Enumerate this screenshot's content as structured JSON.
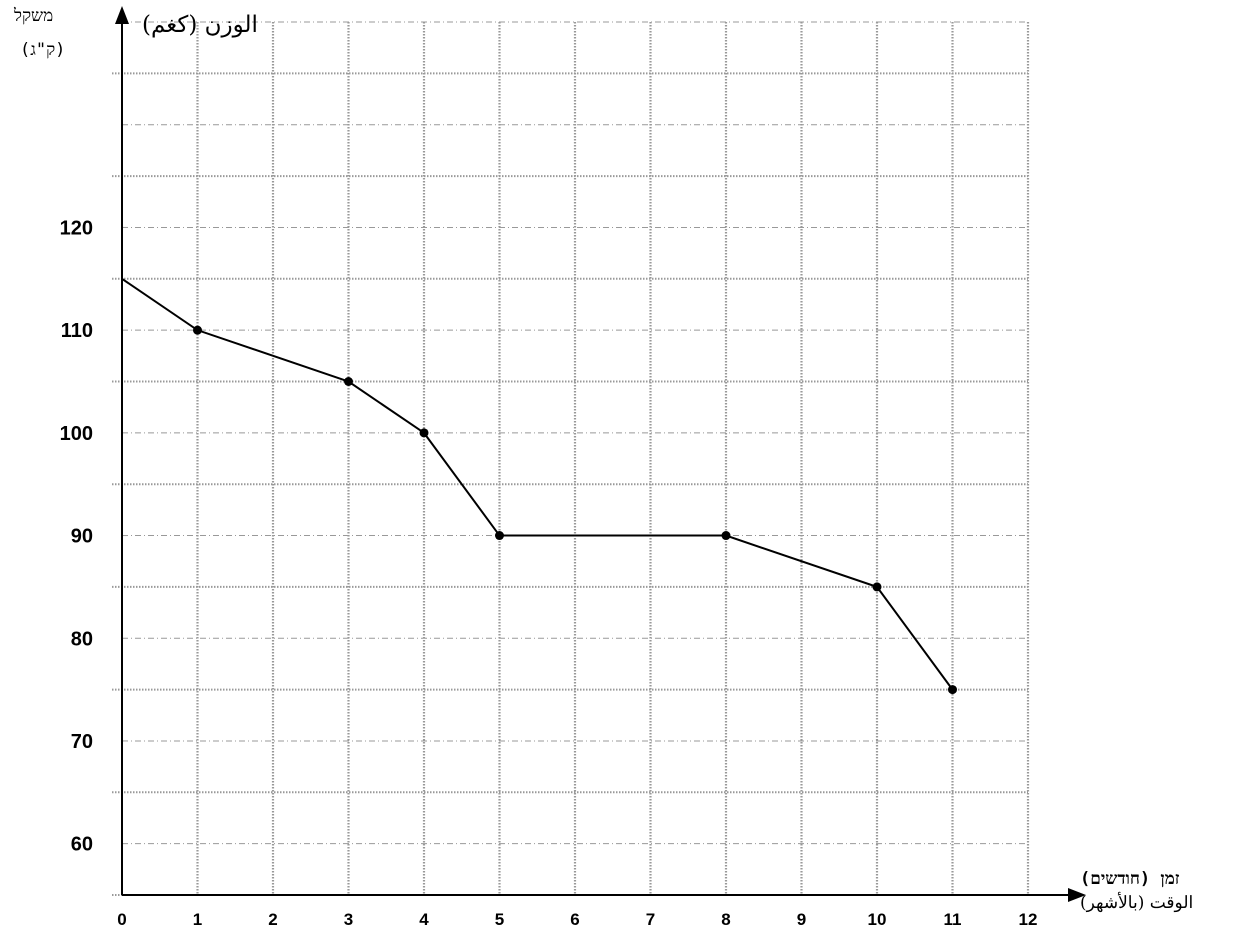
{
  "labels": {
    "y_hebrew": "משקל",
    "y_hebrew_unit": "(ק\"ג)",
    "y_arabic": "الوزن (كغم)",
    "x_hebrew": "זמן (חודשים)",
    "x_arabic": "الوقت (بالأشهر)"
  },
  "chart_data": {
    "type": "line",
    "x": [
      0,
      1,
      3,
      4,
      5,
      8,
      10,
      11
    ],
    "y": [
      115,
      110,
      105,
      100,
      90,
      90,
      85,
      75
    ],
    "series_color": "#000000",
    "xlim": [
      0,
      12
    ],
    "ylim": [
      55,
      140
    ],
    "x_ticks": [
      "0",
      "1",
      "2",
      "3",
      "4",
      "5",
      "6",
      "7",
      "8",
      "9",
      "10",
      "11",
      "12"
    ],
    "y_ticks": [
      "60",
      "70",
      "80",
      "90",
      "100",
      "110",
      "120"
    ],
    "y_tick_values": [
      60,
      70,
      80,
      90,
      100,
      110,
      120
    ],
    "grid": true,
    "grid_color": "#999999",
    "marker": "circle"
  }
}
